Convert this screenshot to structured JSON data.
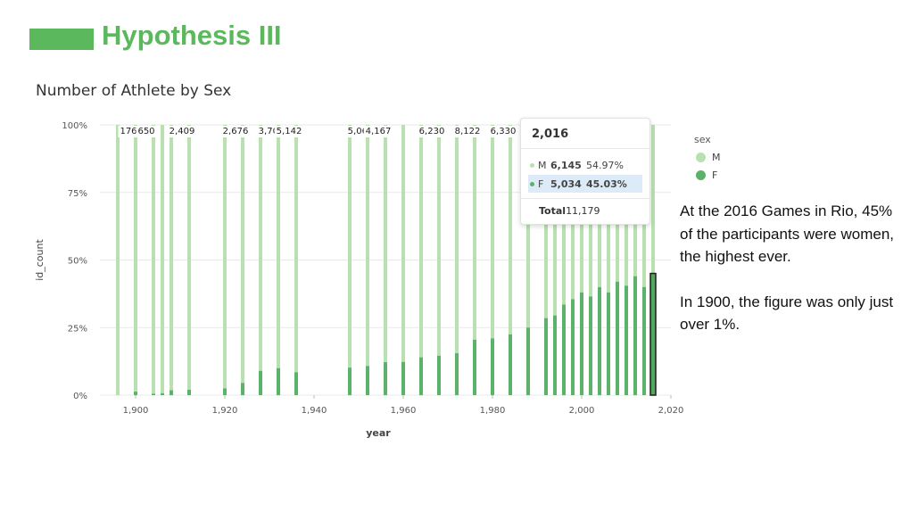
{
  "slide": {
    "title": "Hypothesis III"
  },
  "chart_title": "Number of Athlete by Sex",
  "side_text": [
    "At the 2016 Games in Rio, 45% of the participants were women, the highest ever.",
    "In 1900, the figure was only just over 1%."
  ],
  "legend": {
    "title": "sex",
    "items": [
      "M",
      "F"
    ]
  },
  "colors": {
    "M": "#b8e0b0",
    "F": "#5cb26a",
    "accent": "#5cb85c"
  },
  "tooltip": {
    "year": "2,016",
    "rows": [
      {
        "name": "M",
        "count": "6,145",
        "pct": "54.97%"
      },
      {
        "name": "F",
        "count": "5,034",
        "pct": "45.03%"
      }
    ],
    "total_label": "Total",
    "total_value": "11,179"
  },
  "chart_data": {
    "type": "bar",
    "stacked": "percent",
    "xlabel": "year",
    "ylabel": "id_count",
    "xlim": [
      1892,
      2020
    ],
    "ylim": [
      0,
      100
    ],
    "x_ticks": [
      "1,900",
      "1,920",
      "1,940",
      "1,960",
      "1,980",
      "2,000",
      "2,020"
    ],
    "y_ticks": [
      "0%",
      "25%",
      "50%",
      "75%",
      "100%"
    ],
    "highlighted_year": 2016,
    "years": [
      1896,
      1900,
      1904,
      1906,
      1908,
      1912,
      1920,
      1924,
      1928,
      1932,
      1936,
      1948,
      1952,
      1956,
      1960,
      1964,
      1968,
      1972,
      1976,
      1980,
      1984,
      1988,
      1992,
      1994,
      1996,
      1998,
      2000,
      2002,
      2004,
      2006,
      2008,
      2010,
      2012,
      2014,
      2016
    ],
    "female_pct": [
      0,
      1.3,
      0.5,
      0.7,
      1.8,
      2.0,
      2.5,
      4.5,
      9.0,
      10.0,
      8.5,
      10.2,
      10.8,
      12.2,
      12.3,
      14.0,
      14.6,
      15.5,
      20.5,
      21.0,
      22.5,
      25.0,
      28.5,
      29.5,
      33.5,
      35.5,
      38.0,
      36.5,
      40.0,
      38.0,
      42.0,
      40.5,
      44.0,
      40.0,
      45.03
    ],
    "total_labels": [
      "176",
      "650",
      "",
      "",
      "2,409",
      "",
      "2,676",
      "",
      "3,703",
      "5,142",
      "",
      "5,068",
      "4,167",
      "",
      "6,230",
      "8,122",
      "6,330"
    ],
    "total_label_years": [
      1896,
      1900,
      0,
      0,
      1908,
      0,
      1920,
      0,
      1928,
      1932,
      0,
      1948,
      1952,
      0,
      1964,
      1972,
      1980
    ]
  }
}
